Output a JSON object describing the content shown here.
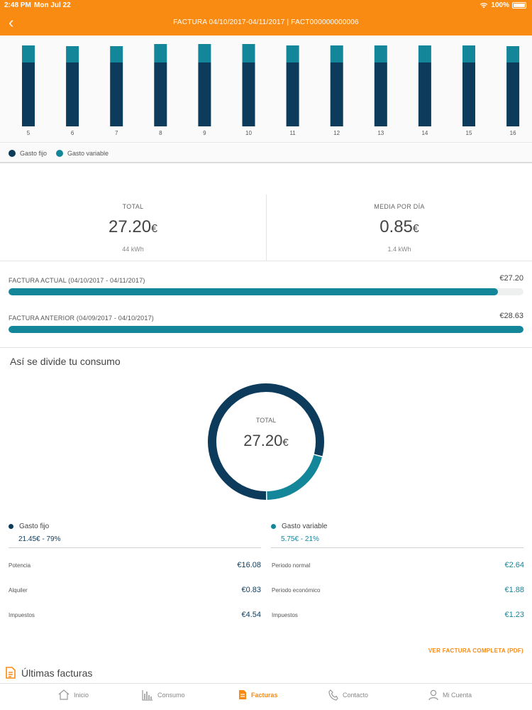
{
  "status_bar": {
    "time": "2:48 PM",
    "date": "Mon Jul 22",
    "battery": "100%"
  },
  "header": {
    "title": "FACTURA 04/10/2017-04/11/2017 | FACT000000000006"
  },
  "chart_data": {
    "type": "bar",
    "categories": [
      "5",
      "6",
      "7",
      "8",
      "9",
      "10",
      "11",
      "12",
      "13",
      "14",
      "15",
      "16"
    ],
    "series": [
      {
        "name": "Gasto fijo",
        "values": [
          0.9,
          0.9,
          0.9,
          0.9,
          0.9,
          0.9,
          0.9,
          0.9,
          0.9,
          0.9,
          0.9,
          0.9
        ]
      },
      {
        "name": "Gasto variable",
        "values": [
          0.24,
          0.23,
          0.23,
          0.26,
          0.26,
          0.26,
          0.24,
          0.24,
          0.24,
          0.24,
          0.24,
          0.23
        ]
      }
    ],
    "stacked": true,
    "colors": [
      "#0c3b5c",
      "#14869a"
    ]
  },
  "legend": {
    "fixed": "Gasto fijo",
    "variable": "Gasto variable"
  },
  "totals": {
    "total_label": "TOTAL",
    "total_value": "27.20",
    "total_currency": "€",
    "total_kwh": "44 kWh",
    "avg_label": "MEDIA POR DÍA",
    "avg_value": "0.85",
    "avg_currency": "€",
    "avg_kwh": "1.4 kWh"
  },
  "compare": {
    "current_label": "FACTURA ACTUAL (04/10/2017 - 04/11/2017)",
    "current_amount": "€27.20",
    "current_fraction": 0.95,
    "previous_label": "FACTURA ANTERIOR (04/09/2017 - 04/10/2017)",
    "previous_amount": "€28.63",
    "previous_fraction": 1.0
  },
  "section_title": "Así se divide tu consumo",
  "donut": {
    "center_label": "TOTAL",
    "center_value": "27.20",
    "center_currency": "€",
    "fixed_fraction": 0.79,
    "variable_fraction": 0.21
  },
  "split": {
    "fixed_name": "Gasto fijo",
    "fixed_amount": "21.45€ - 79%",
    "variable_name": "Gasto variable",
    "variable_amount": "5.75€ - 21%"
  },
  "breakdown": {
    "fixed": [
      {
        "label": "Potencia",
        "value": "€16.08"
      },
      {
        "label": "Alquiler",
        "value": "€0.83"
      },
      {
        "label": "Impuestos",
        "value": "€4.54"
      }
    ],
    "variable": [
      {
        "label": "Periodo normal",
        "value": "€2.64"
      },
      {
        "label": "Periodo económico",
        "value": "€1.88"
      },
      {
        "label": "Impuestos",
        "value": "€1.23"
      }
    ]
  },
  "pdf_link": "VER FACTURA COMPLETA (PDF)",
  "last_bills": "Últimas facturas",
  "tabs": [
    {
      "label": "Inicio",
      "icon": "home-icon"
    },
    {
      "label": "Consumo",
      "icon": "bar-chart-icon"
    },
    {
      "label": "Facturas",
      "icon": "document-icon"
    },
    {
      "label": "Contacto",
      "icon": "phone-icon"
    },
    {
      "label": "Mi Cuenta",
      "icon": "user-icon"
    }
  ],
  "colors": {
    "accent": "#f98a12",
    "fixed": "#0c3b5c",
    "variable": "#14869a"
  }
}
